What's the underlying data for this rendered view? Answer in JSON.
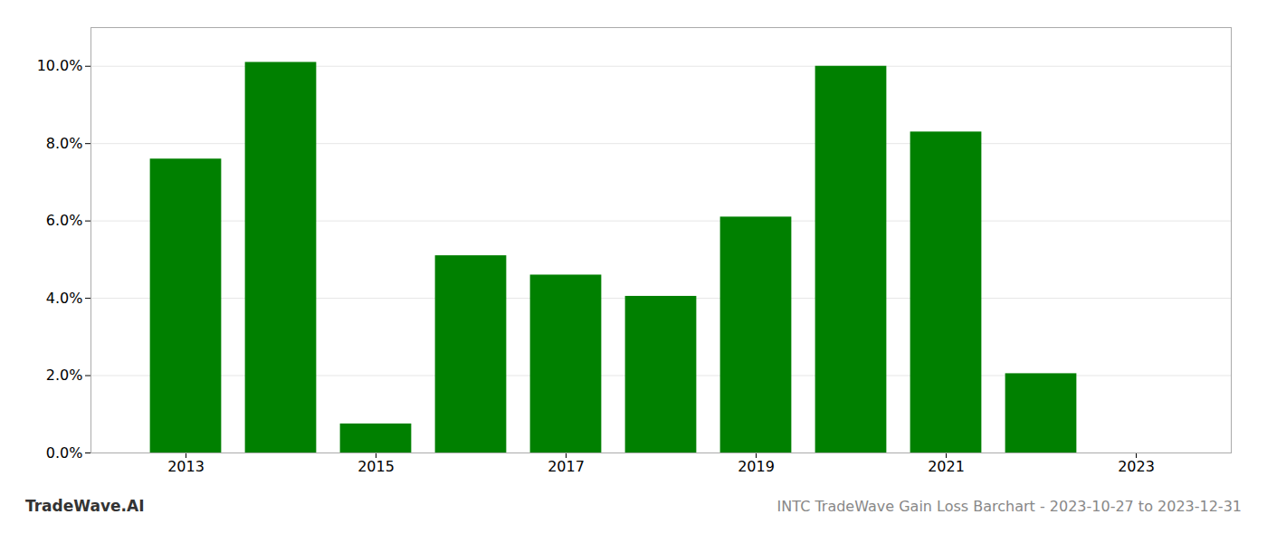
{
  "chart_data": {
    "type": "bar",
    "title": "INTC TradeWave Gain Loss Barchart - 2023-10-27 to 2023-12-31",
    "annotations": [
      "TradeWave.AI"
    ],
    "x": [
      2013,
      2014,
      2015,
      2016,
      2017,
      2018,
      2019,
      2020,
      2021,
      2022,
      2023
    ],
    "values": [
      0.076,
      0.101,
      0.0075,
      0.051,
      0.046,
      0.0405,
      0.061,
      0.1,
      0.083,
      0.0205,
      0.0
    ],
    "color": "#008000",
    "xlim": [
      2012.0,
      2024.0
    ],
    "xticks": [
      2013,
      2015,
      2017,
      2019,
      2021,
      2023
    ],
    "ylim": [
      0,
      0.11
    ],
    "yticks": [
      {
        "value": 0.0,
        "label": "0.0%"
      },
      {
        "value": 0.02,
        "label": "2.0%"
      },
      {
        "value": 0.04,
        "label": "4.0%"
      },
      {
        "value": 0.06,
        "label": "6.0%"
      },
      {
        "value": 0.08,
        "label": "8.0%"
      },
      {
        "value": 0.1,
        "label": "10.0%"
      }
    ],
    "grid": true
  }
}
